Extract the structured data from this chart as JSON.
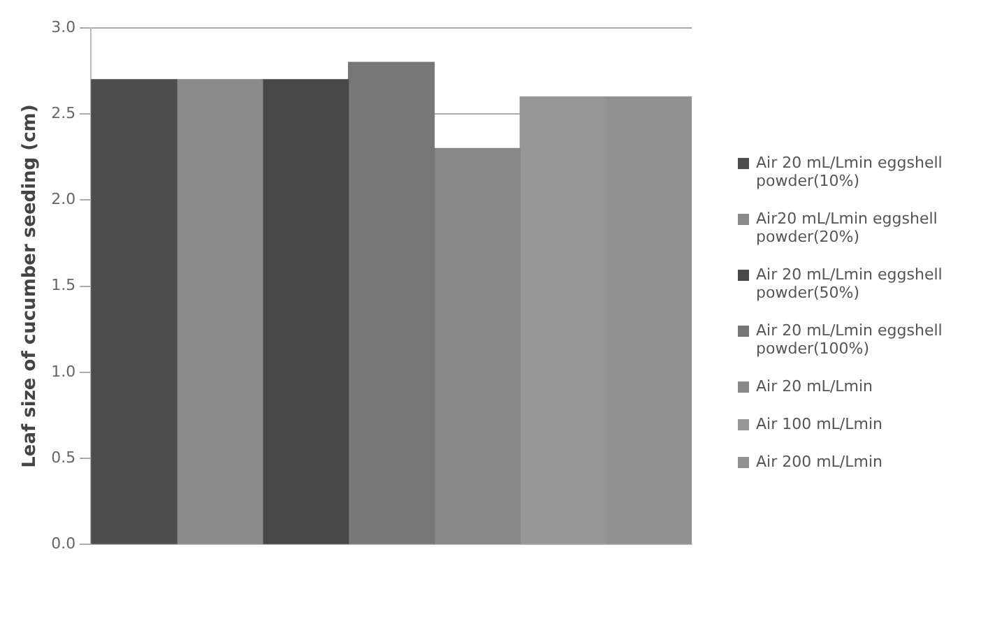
{
  "chart_data": {
    "type": "bar",
    "ylabel": "Leaf size of cucumber seeding (cm)",
    "categories": [
      null
    ],
    "series": [
      {
        "name": "Air 20 mL/Lmin eggshell powder(10%)",
        "color": "#4d4d4d",
        "values": [
          2.7
        ]
      },
      {
        "name": "Air20 mL/Lmin eggshell powder(20%)",
        "color": "#8a8a8a",
        "values": [
          2.7
        ]
      },
      {
        "name": "Air 20 mL/Lmin eggshell powder(50%)",
        "color": "#484848",
        "values": [
          2.7
        ]
      },
      {
        "name": "Air 20 mL/Lmin eggshell powder(100%)",
        "color": "#777777",
        "values": [
          2.8
        ]
      },
      {
        "name": "Air 20 mL/Lmin",
        "color": "#888888",
        "values": [
          2.3
        ]
      },
      {
        "name": "Air 100 mL/Lmin",
        "color": "#969696",
        "values": [
          2.6
        ]
      },
      {
        "name": "Air 200 mL/Lmin",
        "color": "#909090",
        "values": [
          2.6
        ]
      }
    ],
    "ylim": [
      0,
      3
    ],
    "yticks": [
      {
        "value": 0,
        "label": "0.0"
      },
      0.5,
      {
        "value": 1,
        "label": "1.0"
      },
      1.5,
      {
        "value": 2,
        "label": "2.0"
      },
      2.5,
      {
        "value": 3,
        "label": "3.0"
      }
    ],
    "grid": "y",
    "legend": "right"
  }
}
